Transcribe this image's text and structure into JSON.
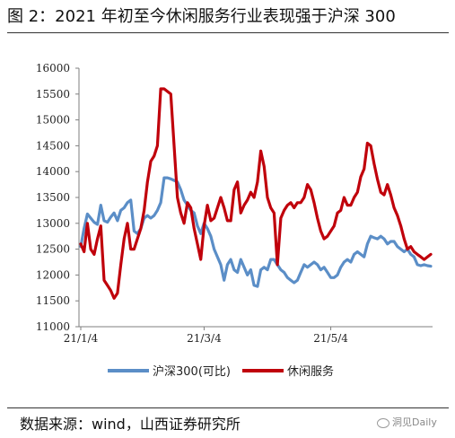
{
  "header": {
    "title": "图 2：2021 年初至今休闲服务行业表现强于沪深 300"
  },
  "footer": {
    "source": "数据来源：wind，山西证券研究所",
    "watermark": "洞见Daily"
  },
  "colors": {
    "series_blue": "#5b8ec7",
    "series_red": "#c0000b"
  },
  "chart_data": {
    "type": "line",
    "ylim": [
      11000,
      16000
    ],
    "yticks": [
      11000,
      11500,
      12000,
      12500,
      13000,
      13500,
      14000,
      14500,
      15000,
      15500,
      16000
    ],
    "xticks": [
      "21/1/4",
      "21/3/4",
      "21/5/4"
    ],
    "legend_position": "bottom",
    "grid": false,
    "series": [
      {
        "name": "沪深300(可比)",
        "values": [
          12550,
          12900,
          13180,
          13100,
          13020,
          12980,
          13350,
          13050,
          13020,
          13120,
          13200,
          13050,
          13250,
          13300,
          13400,
          13450,
          12850,
          12800,
          12900,
          13100,
          13150,
          13100,
          13150,
          13250,
          13400,
          13880,
          13880,
          13860,
          13830,
          13800,
          13650,
          13450,
          13350,
          13250,
          13200,
          12950,
          12800,
          13000,
          12900,
          12750,
          12500,
          12350,
          12200,
          11900,
          12200,
          12300,
          12100,
          12050,
          12300,
          12150,
          12000,
          12100,
          11800,
          11780,
          12100,
          12150,
          12100,
          12300,
          12300,
          12200,
          12100,
          12050,
          11950,
          11900,
          11850,
          11900,
          12050,
          12200,
          12150,
          12200,
          12250,
          12200,
          12100,
          12150,
          12050,
          11950,
          11950,
          12000,
          12150,
          12250,
          12300,
          12250,
          12400,
          12450,
          12400,
          12350,
          12600,
          12750,
          12720,
          12700,
          12750,
          12700,
          12600,
          12650,
          12650,
          12550,
          12500,
          12450,
          12500,
          12400,
          12350,
          12200,
          12180,
          12200,
          12180,
          12170
        ]
      },
      {
        "name": "休闲服务",
        "values": [
          12600,
          12450,
          13000,
          12500,
          12400,
          12700,
          12950,
          11900,
          11800,
          11700,
          11550,
          11650,
          12200,
          12700,
          13000,
          12500,
          12500,
          12700,
          12900,
          13250,
          13800,
          14200,
          14300,
          14500,
          15600,
          15600,
          15550,
          15500,
          14500,
          13500,
          13200,
          13000,
          13400,
          13300,
          12900,
          12600,
          12300,
          12950,
          13350,
          13050,
          13100,
          13300,
          13500,
          13300,
          13050,
          13050,
          13650,
          13800,
          13200,
          13350,
          13450,
          13600,
          13500,
          13800,
          14400,
          14100,
          13500,
          13300,
          13200,
          12200,
          13100,
          13250,
          13350,
          13400,
          13300,
          13400,
          13400,
          13500,
          13750,
          13650,
          13400,
          13100,
          12850,
          12700,
          12750,
          12850,
          12950,
          13200,
          13250,
          13500,
          13350,
          13350,
          13500,
          13600,
          13900,
          14050,
          14550,
          14500,
          14150,
          13850,
          13600,
          13550,
          13750,
          13550,
          13300,
          13150,
          12950,
          12700,
          12500,
          12550,
          12450,
          12400,
          12350,
          12300,
          12350,
          12400
        ]
      }
    ]
  }
}
